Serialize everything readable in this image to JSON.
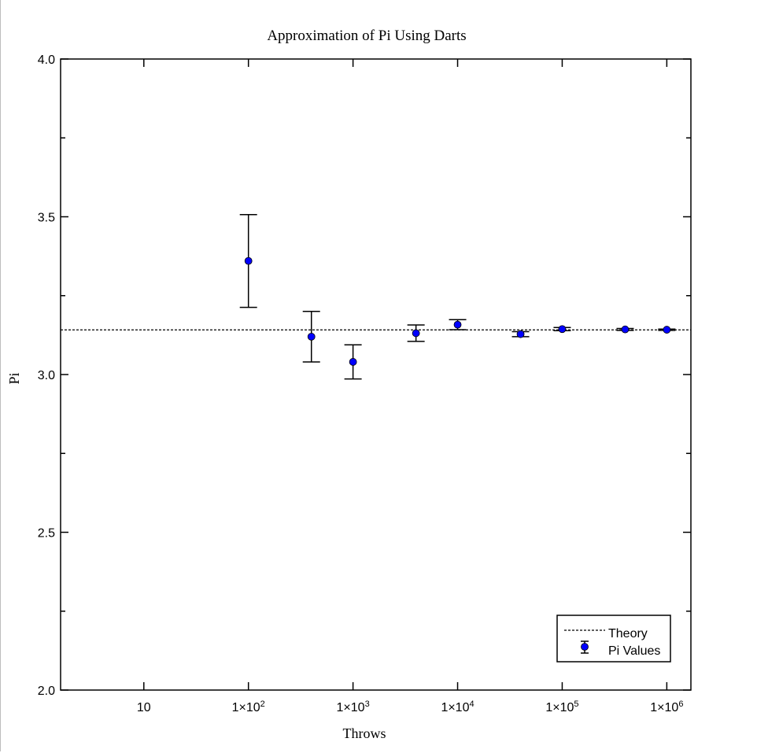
{
  "chart_data": {
    "type": "scatter",
    "title": "Approximation of Pi Using Darts",
    "xlabel": "Throws",
    "ylabel": "Pi",
    "x_scale": "log",
    "xlim": [
      1.6,
      1700000
    ],
    "ylim": [
      2.0,
      4.0
    ],
    "x_ticks": [
      {
        "value": 10,
        "mantissa": "10",
        "exp": ""
      },
      {
        "value": 100,
        "mantissa": "1×10",
        "exp": "2"
      },
      {
        "value": 1000,
        "mantissa": "1×10",
        "exp": "3"
      },
      {
        "value": 10000,
        "mantissa": "1×10",
        "exp": "4"
      },
      {
        "value": 100000,
        "mantissa": "1×10",
        "exp": "5"
      },
      {
        "value": 1000000,
        "mantissa": "1×10",
        "exp": "6"
      }
    ],
    "y_ticks": [
      {
        "value": 2.0,
        "label": "2.0"
      },
      {
        "value": 2.5,
        "label": "2.5"
      },
      {
        "value": 3.0,
        "label": "3.0"
      },
      {
        "value": 3.5,
        "label": "3.5"
      },
      {
        "value": 4.0,
        "label": "4.0"
      }
    ],
    "y_minor_ticks": [
      2.25,
      2.75,
      3.25,
      3.75
    ],
    "grid": false,
    "legend_position": "bottom-right",
    "theory": {
      "name": "Theory",
      "value": 3.14159,
      "style": "dashed",
      "color": "#000000"
    },
    "series": [
      {
        "name": "Pi Values",
        "color": "#0000ff",
        "points": [
          {
            "x": 100,
            "y": 3.36,
            "yerr": 0.147
          },
          {
            "x": 400,
            "y": 3.12,
            "yerr": 0.08
          },
          {
            "x": 1000,
            "y": 3.04,
            "yerr": 0.054
          },
          {
            "x": 4000,
            "y": 3.131,
            "yerr": 0.026
          },
          {
            "x": 10000,
            "y": 3.158,
            "yerr": 0.016
          },
          {
            "x": 40000,
            "y": 3.128,
            "yerr": 0.008
          },
          {
            "x": 100000,
            "y": 3.144,
            "yerr": 0.005
          },
          {
            "x": 400000,
            "y": 3.143,
            "yerr": 0.003
          },
          {
            "x": 1000000,
            "y": 3.142,
            "yerr": 0.002
          }
        ]
      }
    ]
  }
}
